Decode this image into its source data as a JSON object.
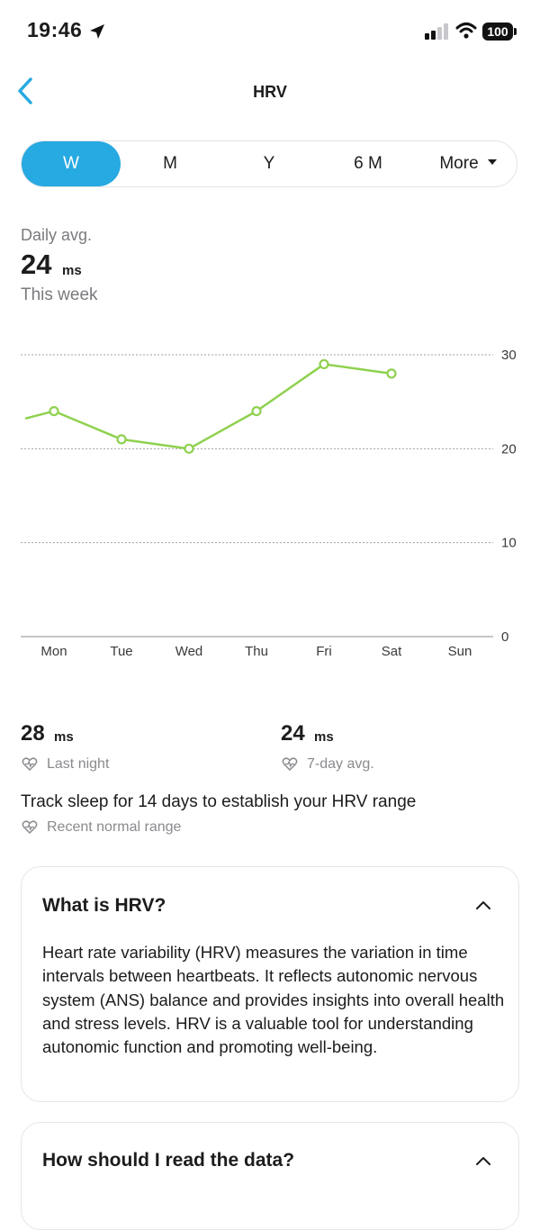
{
  "status_bar": {
    "time": "19:46",
    "battery": "100"
  },
  "header": {
    "title": "HRV"
  },
  "tabs": [
    {
      "label": "W",
      "active": true
    },
    {
      "label": "M",
      "active": false
    },
    {
      "label": "Y",
      "active": false
    },
    {
      "label": "6 M",
      "active": false
    },
    {
      "label": "More",
      "active": false
    }
  ],
  "summary": {
    "label": "Daily avg.",
    "value": "24",
    "unit": "ms",
    "period": "This week"
  },
  "chart_data": {
    "type": "line",
    "categories": [
      "Mon",
      "Tue",
      "Wed",
      "Thu",
      "Fri",
      "Sat",
      "Sun"
    ],
    "series": [
      {
        "values": [
          24,
          21,
          20,
          24,
          29,
          28,
          null
        ]
      }
    ],
    "y_ticks": [
      "0",
      "10",
      "20",
      "30"
    ],
    "ylim": [
      0,
      30
    ],
    "grid": true,
    "line_color": "#8fd14f"
  },
  "stats": {
    "last_night": {
      "value": "28",
      "unit": "ms",
      "label": "Last night"
    },
    "seven_day": {
      "value": "24",
      "unit": "ms",
      "label": "7-day avg."
    },
    "range_message": "Track sleep for 14 days to establish your HRV range",
    "range_label": "Recent normal range"
  },
  "cards": {
    "what_is": {
      "title": "What is HRV?",
      "body": "Heart rate variability (HRV) measures the variation in time intervals between heartbeats. It reflects autonomic nervous system (ANS) balance and provides insights into overall health and stress levels. HRV is a valuable tool for understanding autonomic function and promoting well-being."
    },
    "how_to_read": {
      "title": "How should I read the data?"
    }
  },
  "colors": {
    "accent": "#27a9e1",
    "line": "#8fd14f"
  }
}
